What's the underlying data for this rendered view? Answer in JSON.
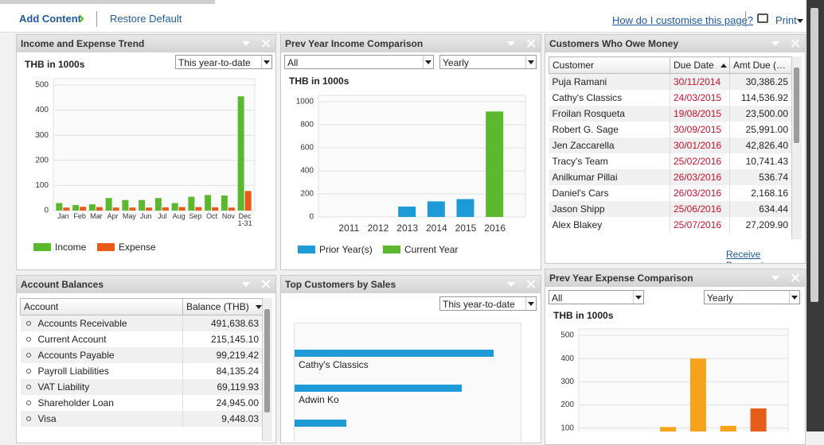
{
  "toolbar": {
    "add_content": "Add Content",
    "restore_default": "Restore Default",
    "help_link": "How do I customise this page?",
    "print": "Print"
  },
  "panels": {
    "income_expense": {
      "title": "Income and Expense Trend",
      "unit": "THB in 1000s",
      "period": "This year-to-date",
      "chart": {
        "type": "bar",
        "categories": [
          "Jan",
          "Feb",
          "Mar",
          "Apr",
          "May",
          "Jun",
          "Jul",
          "Aug",
          "Sep",
          "Oct",
          "Nov",
          "Dec 1-31"
        ],
        "series": [
          {
            "name": "Income",
            "color": "#5cb82e",
            "values": [
              30,
              22,
              25,
              50,
              42,
              42,
              50,
              30,
              55,
              62,
              60,
              455
            ]
          },
          {
            "name": "Expense",
            "color": "#ea5a1a",
            "values": [
              12,
              15,
              14,
              12,
              12,
              12,
              13,
              14,
              14,
              13,
              12,
              78
            ]
          }
        ],
        "ylim": [
          0,
          500
        ],
        "yticks": [
          0,
          100,
          200,
          300,
          400,
          500
        ],
        "grid": true
      }
    },
    "prev_income": {
      "title": "Prev Year Income Comparison",
      "filter": "All",
      "interval": "Yearly",
      "unit": "THB in 1000s",
      "chart": {
        "type": "bar",
        "categories": [
          "2011",
          "2012",
          "2013",
          "2014",
          "2015",
          "2016"
        ],
        "series": [
          {
            "name": "Prior Year(s)",
            "color": "#1e9bd7",
            "values": [
              null,
              null,
              90,
              135,
              155,
              null
            ]
          },
          {
            "name": "Current Year",
            "color": "#5cb82e",
            "values": [
              null,
              null,
              null,
              null,
              null,
              915
            ]
          }
        ],
        "ylim": [
          0,
          1000
        ],
        "yticks": [
          0,
          200,
          400,
          600,
          800,
          1000
        ],
        "grid": true
      }
    },
    "owe_money": {
      "title": "Customers Who Owe Money",
      "columns": [
        "Customer",
        "Due Date",
        "Amt Due (…"
      ],
      "rows": [
        [
          "Puja Ramani",
          "30/11/2014",
          "30,386.25"
        ],
        [
          "Cathy's Classics",
          "24/03/2015",
          "114,536.92"
        ],
        [
          "Froilan Rosqueta",
          "19/08/2015",
          "23,500.00"
        ],
        [
          "Robert G. Sage",
          "30/09/2015",
          "25,991.00"
        ],
        [
          "Jen Zaccarella",
          "30/01/2016",
          "42,826.40"
        ],
        [
          "Tracy's Team",
          "25/02/2016",
          "10,741.43"
        ],
        [
          "Anilkumar Pillai",
          "26/03/2016",
          "536.74"
        ],
        [
          "Daniel's Cars",
          "26/03/2016",
          "2,168.16"
        ],
        [
          "Jason Shipp",
          "25/06/2016",
          "634.44"
        ],
        [
          "Alex Blakey",
          "25/07/2016",
          "27,209.90"
        ]
      ],
      "action": "Receive Payments"
    },
    "account_balances": {
      "title": "Account Balances",
      "columns": [
        "Account",
        "Balance (THB)"
      ],
      "rows": [
        [
          "Accounts Receivable",
          "491,638.63"
        ],
        [
          "Current Account",
          "215,145.10"
        ],
        [
          "Accounts Payable",
          "99,219.42"
        ],
        [
          "Payroll Liabilities",
          "84,135.24"
        ],
        [
          "VAT Liability",
          "69,119.93"
        ],
        [
          "Shareholder Loan",
          "24,945.00"
        ],
        [
          "Visa",
          "9,448.03"
        ]
      ]
    },
    "top_customers": {
      "title": "Top Customers by Sales",
      "period": "This year-to-date",
      "chart": {
        "type": "hbar",
        "categories": [
          "Cathy's Classics",
          "Adwin Ko",
          null
        ],
        "values": [
          250,
          210,
          65
        ],
        "color": "#1e9bd7",
        "xlim": [
          0,
          280
        ]
      }
    },
    "prev_expense": {
      "title": "Prev Year Expense Comparison",
      "filter": "All",
      "interval": "Yearly",
      "unit": "THB in 1000s",
      "chart": {
        "type": "bar",
        "categories": [
          null,
          null,
          null,
          null,
          null,
          null
        ],
        "series": [
          {
            "color": "#f7a21b",
            "values": [
              null,
              null,
              105,
              400,
              110,
              null
            ]
          },
          {
            "color": "#e65c19",
            "values": [
              null,
              null,
              null,
              null,
              null,
              185
            ]
          }
        ],
        "ylim": [
          0,
          500
        ],
        "yticks": [
          100,
          200,
          300,
          400,
          500
        ],
        "grid": true
      }
    }
  }
}
